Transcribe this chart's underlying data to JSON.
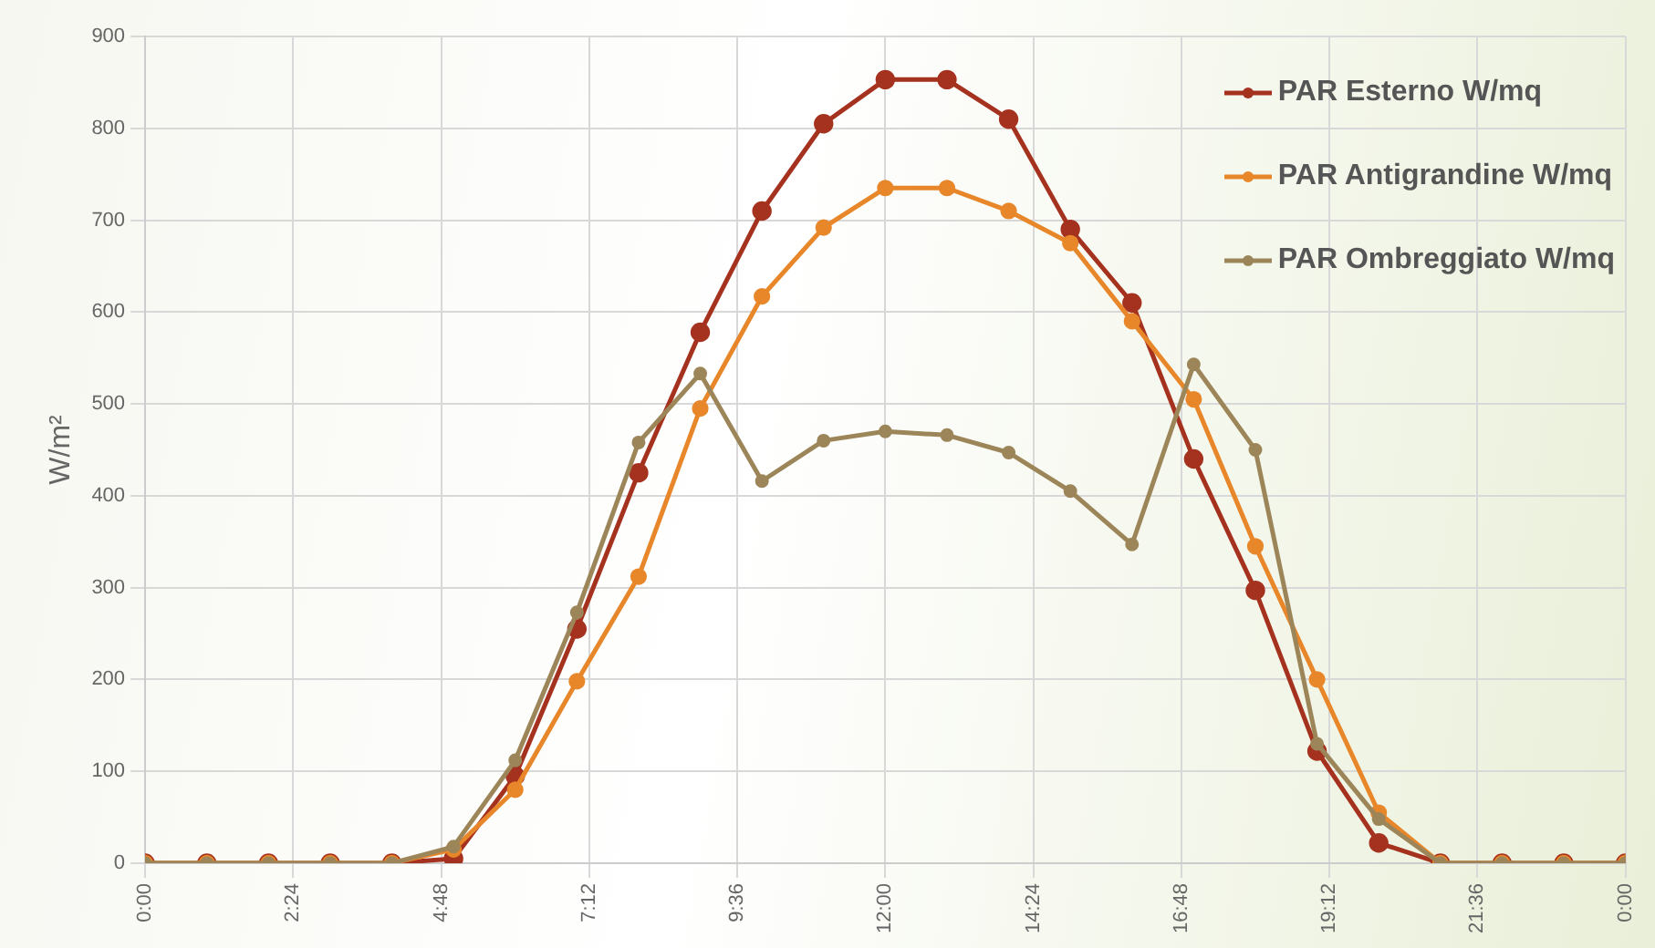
{
  "chart_data": {
    "type": "line",
    "ylabel": "W/m²",
    "x": [
      0,
      1,
      2,
      3,
      4,
      5,
      6,
      7,
      8,
      9,
      10,
      11,
      12,
      13,
      14,
      15,
      16,
      17,
      18,
      19,
      20,
      21,
      22,
      23,
      24
    ],
    "series": [
      {
        "name": "PAR Esterno W/mq",
        "color": "#a5321e",
        "values": [
          0,
          0,
          0,
          0,
          0,
          5,
          95,
          255,
          425,
          578,
          710,
          805,
          853,
          853,
          810,
          690,
          610,
          440,
          297,
          122,
          22,
          0,
          0,
          0,
          0
        ]
      },
      {
        "name": "PAR Antigrandine W/mq",
        "color": "#e8862a",
        "values": [
          0,
          0,
          0,
          0,
          0,
          15,
          80,
          198,
          312,
          495,
          617,
          692,
          735,
          735,
          710,
          675,
          590,
          505,
          345,
          200,
          55,
          0,
          0,
          0,
          0
        ]
      },
      {
        "name": "PAR Ombreggiato W/mq",
        "color": "#9c8659",
        "values": [
          0,
          0,
          0,
          0,
          0,
          18,
          112,
          273,
          458,
          533,
          416,
          460,
          470,
          466,
          447,
          405,
          347,
          543,
          450,
          130,
          48,
          0,
          0,
          0,
          0
        ]
      }
    ],
    "xlim": [
      0,
      24
    ],
    "xticks": [
      {
        "value": 0,
        "label": "0:00"
      },
      {
        "value": 2.4,
        "label": "2:24"
      },
      {
        "value": 4.8,
        "label": "4:48"
      },
      {
        "value": 7.2,
        "label": "7:12"
      },
      {
        "value": 9.6,
        "label": "9:36"
      },
      {
        "value": 12,
        "label": "12:00"
      },
      {
        "value": 14.4,
        "label": "14:24"
      },
      {
        "value": 16.8,
        "label": "16:48"
      },
      {
        "value": 19.2,
        "label": "19:12"
      },
      {
        "value": 21.6,
        "label": "21:36"
      },
      {
        "value": 24,
        "label": "0:00"
      }
    ],
    "ylim": [
      0,
      900
    ],
    "yticks": [
      0,
      100,
      200,
      300,
      400,
      500,
      600,
      700,
      800,
      900
    ],
    "grid": true,
    "legend": "top right",
    "marker": "circle",
    "line_style": "solid"
  }
}
